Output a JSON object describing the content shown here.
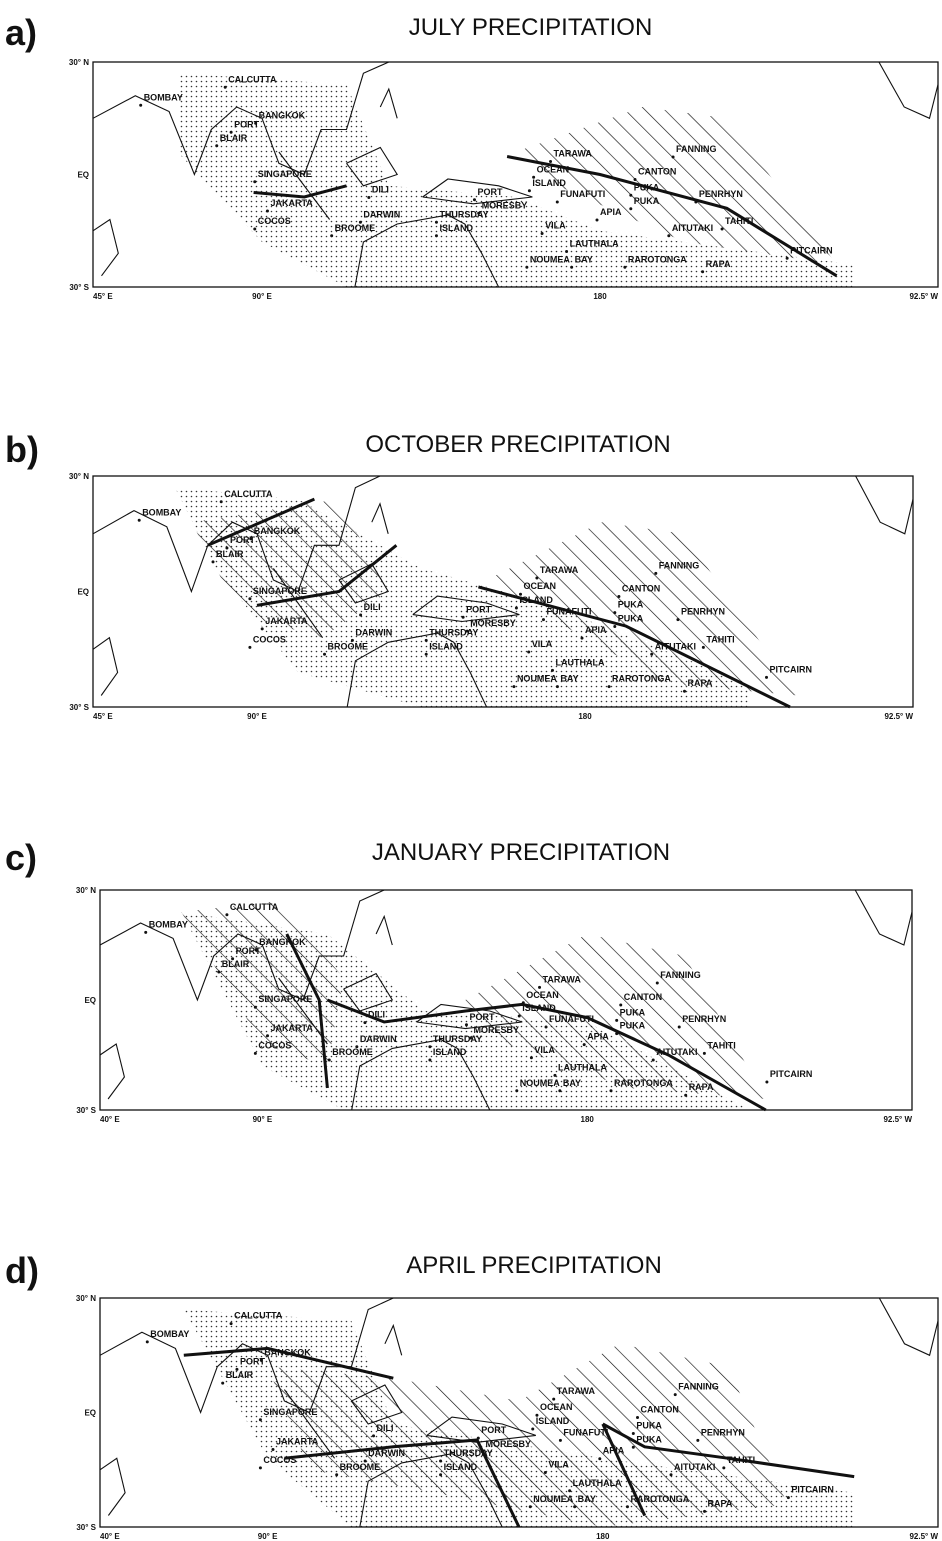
{
  "panels": [
    {
      "letter": "a)",
      "title": "JULY PRECIPITATION",
      "axes": {
        "y": [
          "30° N",
          "EQ",
          "30° S"
        ],
        "x": [
          "45° E",
          "90° E",
          "180",
          "92.5° W"
        ]
      },
      "stations": [
        "BOMBAY",
        "CALCUTTA",
        "BANGKOK",
        "PORT",
        "BLAIR",
        "SINGAPORE",
        "JAKARTA",
        "COCOS",
        "BROOME",
        "DILI",
        "DARWIN",
        "THURSDAY",
        "ISLAND",
        "PORT",
        "MORESBY",
        "TARAWA",
        "OCEAN",
        "ISLAND",
        "FUNAFUTI",
        "FANNING",
        "CANTON",
        "PUKA",
        "PUKA",
        "PENRHYN",
        "APIA",
        "AITUTAKI",
        "TAHITI",
        "VILA",
        "LAUTHALA",
        "BAY",
        "NOUMEA",
        "RAROTONGA",
        "RAPA",
        "PITCAIRN"
      ]
    },
    {
      "letter": "b)",
      "title": "OCTOBER PRECIPITATION",
      "axes": {
        "y": [
          "30° N",
          "EQ",
          "30° S"
        ],
        "x": [
          "45° E",
          "90° E",
          "180",
          "92.5° W"
        ]
      },
      "stations": [
        "BOMBAY",
        "CALCUTTA",
        "BANGKOK",
        "PORT",
        "BLAIR",
        "SINGAPORE",
        "JAKARTA",
        "COCOS",
        "BROOME",
        "DILI",
        "DARWIN",
        "THURSDAY",
        "ISLAND",
        "PORT",
        "MORESBY",
        "TARAWA",
        "OCEAN",
        "ISLAND",
        "FUNAFUTI",
        "FANNING",
        "CANTON",
        "PUKA",
        "PUKA",
        "PENRHYN",
        "APIA",
        "AITUTAKI",
        "TAHITI",
        "VILA",
        "LAUTHALA",
        "BAY",
        "NOUMEA",
        "RAROTONGA",
        "RAPA",
        "PITCAIRN"
      ]
    },
    {
      "letter": "c)",
      "title": "JANUARY PRECIPITATION",
      "axes": {
        "y": [
          "30° N",
          "EQ",
          "30° S"
        ],
        "x": [
          "40° E",
          "90° E",
          "180",
          "92.5° W"
        ]
      },
      "stations": [
        "BOMBAY",
        "CALCUTTA",
        "BANGKOK",
        "PORT",
        "BLAIR",
        "SINGAPORE",
        "JAKARTA",
        "COCOS",
        "BROOME",
        "DILI",
        "DARWIN",
        "THURSDAY",
        "ISLAND",
        "PORT",
        "MORESBY",
        "TARAWA",
        "OCEAN",
        "ISLAND",
        "FUNAFUTI",
        "FANNING",
        "CANTON",
        "PUKA",
        "PUKA",
        "PENRHYN",
        "APIA",
        "AITUTAKI",
        "TAHITI",
        "VILA",
        "LAUTHALA",
        "BAY",
        "NOUMEA",
        "RAROTONGA",
        "RAPA",
        "PITCAIRN"
      ]
    },
    {
      "letter": "d)",
      "title": "APRIL PRECIPITATION",
      "axes": {
        "y": [
          "30° N",
          "EQ",
          "30° S"
        ],
        "x": [
          "40° E",
          "90° E",
          "180",
          "92.5° W"
        ]
      },
      "stations": [
        "BOMBAY",
        "CALCUTTA",
        "BANGKOK",
        "PORT",
        "BLAIR",
        "SINGAPORE",
        "JAKARTA",
        "COCOS",
        "BROOME",
        "DILI",
        "DARWIN",
        "THURSDAY",
        "ISLAND",
        "PORT",
        "MORESBY",
        "TARAWA",
        "OCEAN",
        "ISLAND",
        "FUNAFUTI",
        "FANNING",
        "CANTON",
        "PUKA",
        "PUKA",
        "PENRHYN",
        "APIA",
        "AITUTAKI",
        "TAHITI",
        "VILA",
        "LAUTHALA",
        "BAY",
        "NOUMEA",
        "RAROTONGA",
        "RAPA",
        "PITCAIRN"
      ]
    }
  ]
}
